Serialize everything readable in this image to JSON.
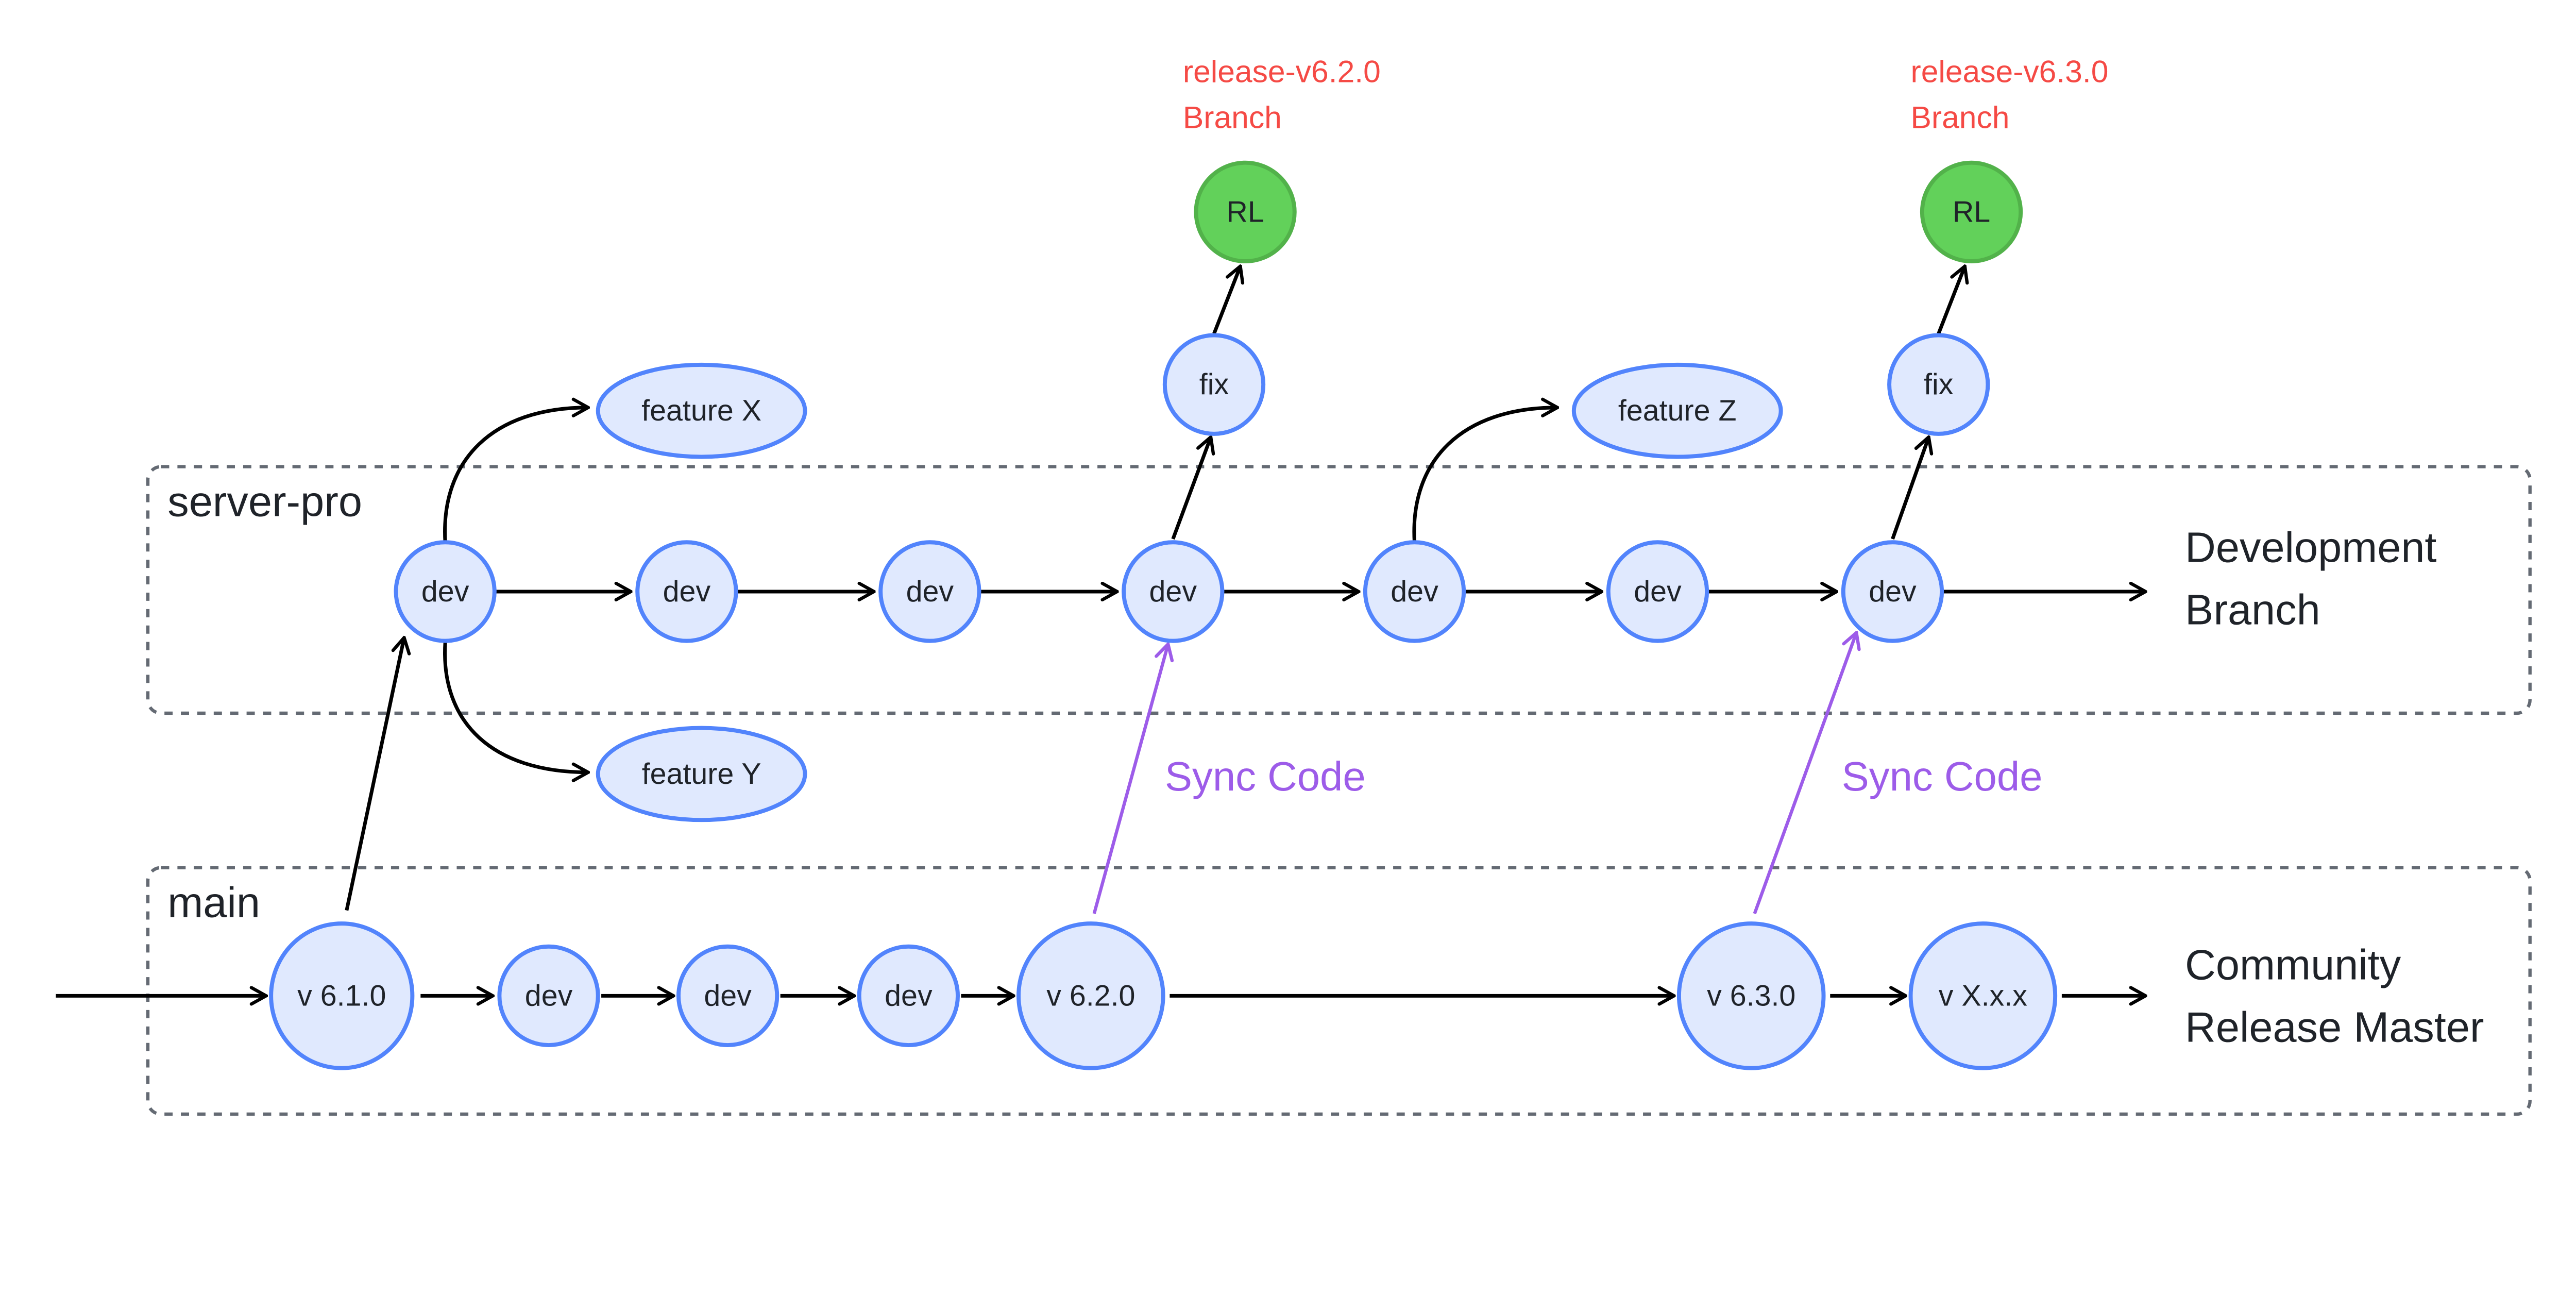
{
  "lanes": {
    "server_pro": {
      "label": "server-pro",
      "side_label": [
        "Development",
        "Branch"
      ]
    },
    "main": {
      "label": "main",
      "side_label": [
        "Community",
        "Release Master"
      ]
    }
  },
  "dev_row": [
    "dev",
    "dev",
    "dev",
    "dev",
    "dev",
    "dev",
    "dev"
  ],
  "main_row": [
    "v 6.1.0",
    "dev",
    "dev",
    "dev",
    "v 6.2.0",
    "v 6.3.0",
    "v X.x.x"
  ],
  "features": [
    "feature X",
    "feature Y",
    "feature Z"
  ],
  "fixes": [
    "fix",
    "fix"
  ],
  "releases": [
    {
      "node": "RL",
      "label": [
        "release-v6.2.0",
        "Branch"
      ]
    },
    {
      "node": "RL",
      "label": [
        "release-v6.3.0",
        "Branch"
      ]
    }
  ],
  "sync_labels": [
    "Sync Code",
    "Sync Code"
  ],
  "colors": {
    "node_fill": "#e0e9fe",
    "node_stroke": "#5284fc",
    "release_fill": "#62d15a",
    "release_label": "#f54a45",
    "sync": "#9d5ce9"
  }
}
